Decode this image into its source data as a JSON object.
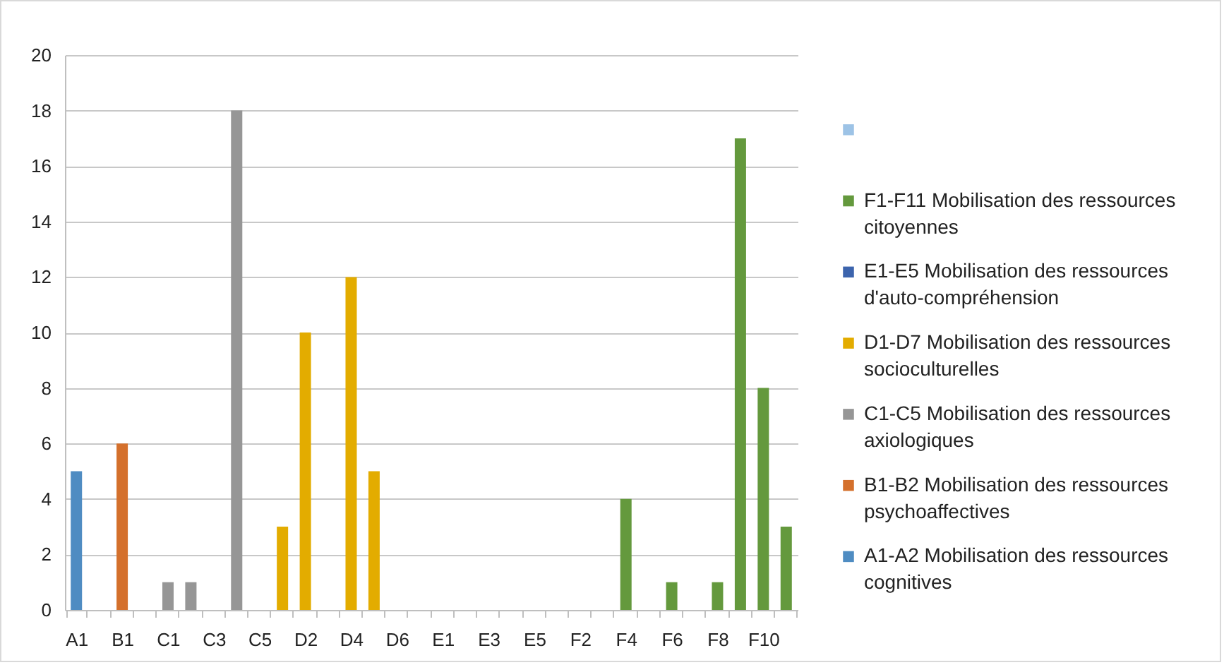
{
  "chart_data": {
    "type": "bar",
    "categories": [
      "A1",
      null,
      "B1",
      null,
      "C1",
      null,
      "C3",
      null,
      "C5",
      null,
      "D2",
      null,
      "D4",
      null,
      "D6",
      null,
      "E1",
      null,
      "E3",
      null,
      "E5",
      null,
      "F2",
      null,
      "F4",
      null,
      "F6",
      null,
      "F8",
      null,
      "F10",
      null
    ],
    "series": [
      {
        "name": "A1-A2 Mobilisation des ressources cognitives",
        "color": "#4f8cc2",
        "values": [
          5,
          null,
          null,
          null,
          null,
          null,
          null,
          null,
          null,
          null,
          null,
          null,
          null,
          null,
          null,
          null,
          null,
          null,
          null,
          null,
          null,
          null,
          null,
          null,
          null,
          null,
          null,
          null,
          null,
          null,
          null,
          null
        ]
      },
      {
        "name": "B1-B2 Mobilisation des ressources psychoaffectives",
        "color": "#d4702c",
        "values": [
          null,
          null,
          6,
          null,
          null,
          null,
          null,
          null,
          null,
          null,
          null,
          null,
          null,
          null,
          null,
          null,
          null,
          null,
          null,
          null,
          null,
          null,
          null,
          null,
          null,
          null,
          null,
          null,
          null,
          null,
          null,
          null
        ]
      },
      {
        "name": "C1-C5 Mobilisation des ressources axiologiques",
        "color": "#969696",
        "values": [
          null,
          null,
          null,
          null,
          1,
          1,
          null,
          18,
          null,
          null,
          null,
          null,
          null,
          null,
          null,
          null,
          null,
          null,
          null,
          null,
          null,
          null,
          null,
          null,
          null,
          null,
          null,
          null,
          null,
          null,
          null,
          null
        ]
      },
      {
        "name": "D1-D7 Mobilisation des ressources socioculturelles",
        "color": "#e3ac00",
        "values": [
          null,
          null,
          null,
          null,
          null,
          null,
          null,
          null,
          null,
          3,
          10,
          null,
          12,
          5,
          null,
          null,
          null,
          null,
          null,
          null,
          null,
          null,
          null,
          null,
          null,
          null,
          null,
          null,
          null,
          null,
          null,
          null
        ]
      },
      {
        "name": "E1-E5 Mobilisation des ressources d'auto-compréhension",
        "color": "#3c64ad",
        "values": [
          null,
          null,
          null,
          null,
          null,
          null,
          null,
          null,
          null,
          null,
          null,
          null,
          null,
          null,
          null,
          null,
          null,
          null,
          null,
          null,
          null,
          null,
          null,
          null,
          null,
          null,
          null,
          null,
          null,
          null,
          null,
          null
        ]
      },
      {
        "name": "F1-F11 Mobilisation des ressources citoyennes",
        "color": "#64993d",
        "values": [
          null,
          null,
          null,
          null,
          null,
          null,
          null,
          null,
          null,
          null,
          null,
          null,
          null,
          null,
          null,
          null,
          null,
          null,
          null,
          null,
          null,
          null,
          null,
          null,
          4,
          null,
          1,
          null,
          1,
          17,
          8,
          3
        ]
      },
      {
        "color": "#9dc3e6",
        "values": [
          null,
          null,
          null,
          null,
          null,
          null,
          null,
          null,
          null,
          null,
          null,
          null,
          null,
          null,
          null,
          null,
          null,
          null,
          null,
          null,
          null,
          null,
          null,
          null,
          null,
          null,
          null,
          null,
          null,
          null,
          null,
          null
        ]
      }
    ],
    "ylim": [
      0,
      20
    ],
    "yticks": [
      0,
      2,
      4,
      6,
      8,
      10,
      12,
      14,
      16,
      18,
      20
    ],
    "grid": "y",
    "legend": "right"
  }
}
